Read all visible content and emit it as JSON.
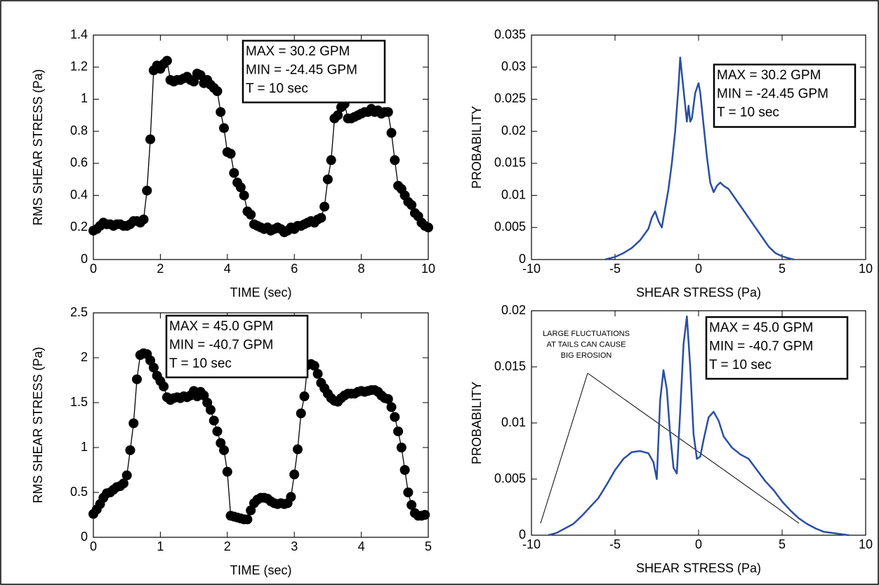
{
  "chart_data": [
    {
      "type": "line",
      "markers": true,
      "color": "#000000",
      "x_label": "TIME (sec)",
      "y_label": "RMS SHEAR STRESS (Pa)",
      "annotation": [
        "MAX = 30.2 GPM",
        "MIN = -24.45 GPM",
        "T = 10 sec"
      ],
      "x": [
        0,
        0.1,
        0.2,
        0.3,
        0.4,
        0.5,
        0.6,
        0.7,
        0.8,
        0.9,
        1,
        1.1,
        1.2,
        1.3,
        1.4,
        1.5,
        1.6,
        1.7,
        1.8,
        1.9,
        2,
        2.1,
        2.2,
        2.3,
        2.4,
        2.5,
        2.6,
        2.7,
        2.8,
        2.9,
        3,
        3.1,
        3.2,
        3.3,
        3.4,
        3.5,
        3.6,
        3.7,
        3.8,
        3.9,
        4,
        4.1,
        4.2,
        4.3,
        4.4,
        4.5,
        4.6,
        4.7,
        4.8,
        4.9,
        5,
        5.1,
        5.2,
        5.3,
        5.4,
        5.5,
        5.6,
        5.7,
        5.8,
        5.9,
        6,
        6.1,
        6.2,
        6.3,
        6.4,
        6.5,
        6.6,
        6.7,
        6.8,
        6.9,
        7,
        7.1,
        7.2,
        7.3,
        7.4,
        7.5,
        7.6,
        7.7,
        7.8,
        7.9,
        8,
        8.1,
        8.2,
        8.3,
        8.4,
        8.5,
        8.6,
        8.7,
        8.8,
        8.9,
        9,
        9.1,
        9.2,
        9.3,
        9.4,
        9.5,
        9.6,
        9.7,
        9.8,
        9.9,
        10
      ],
      "values": [
        0.18,
        0.19,
        0.21,
        0.23,
        0.22,
        0.22,
        0.21,
        0.22,
        0.22,
        0.21,
        0.21,
        0.22,
        0.24,
        0.24,
        0.23,
        0.25,
        0.43,
        0.75,
        1.18,
        1.21,
        1.19,
        1.22,
        1.24,
        1.12,
        1.11,
        1.12,
        1.12,
        1.13,
        1.14,
        1.12,
        1.11,
        1.16,
        1.15,
        1.1,
        1.12,
        1.09,
        1.07,
        1.05,
        0.92,
        0.82,
        0.67,
        0.66,
        0.54,
        0.48,
        0.45,
        0.4,
        0.3,
        0.28,
        0.22,
        0.21,
        0.2,
        0.19,
        0.2,
        0.18,
        0.19,
        0.2,
        0.19,
        0.17,
        0.18,
        0.2,
        0.19,
        0.21,
        0.21,
        0.22,
        0.23,
        0.24,
        0.23,
        0.25,
        0.26,
        0.33,
        0.5,
        0.62,
        0.88,
        0.9,
        0.95,
        0.97,
        0.88,
        0.88,
        0.89,
        0.9,
        0.91,
        0.92,
        0.92,
        0.94,
        0.92,
        0.93,
        0.91,
        0.92,
        0.92,
        0.79,
        0.62,
        0.46,
        0.44,
        0.4,
        0.36,
        0.34,
        0.29,
        0.27,
        0.23,
        0.21,
        0.2
      ],
      "xlim": [
        0,
        10
      ],
      "xticks": [
        0,
        2,
        4,
        6,
        8,
        10
      ],
      "ylim": [
        0,
        1.4
      ],
      "yticks": [
        0,
        0.2,
        0.4,
        0.6,
        0.8,
        1,
        1.2,
        1.4
      ]
    },
    {
      "type": "line",
      "markers": false,
      "color": "#2b4ea2",
      "x_label": "SHEAR STRESS (Pa)",
      "y_label": "PROBABILITY",
      "annotation": [
        "MAX = 30.2 GPM",
        "MIN = -24.45 GPM",
        "T = 10 sec"
      ],
      "x": [
        -5.6,
        -5,
        -4.5,
        -4,
        -3.5,
        -3,
        -2.8,
        -2.6,
        -2.4,
        -2.2,
        -2,
        -1.8,
        -1.6,
        -1.4,
        -1.2,
        -1.1,
        -1,
        -0.8,
        -0.7,
        -0.6,
        -0.5,
        -0.4,
        -0.2,
        0,
        0.1,
        0.3,
        0.5,
        0.7,
        0.9,
        1.1,
        1.3,
        1.5,
        1.8,
        2.2,
        2.6,
        3,
        3.4,
        3.8,
        4.2,
        4.6,
        5,
        5.4,
        5.7
      ],
      "values": [
        0,
        0.0004,
        0.001,
        0.0018,
        0.003,
        0.0048,
        0.0065,
        0.0075,
        0.006,
        0.005,
        0.008,
        0.011,
        0.015,
        0.02,
        0.027,
        0.0315,
        0.029,
        0.024,
        0.0215,
        0.024,
        0.0215,
        0.022,
        0.026,
        0.0275,
        0.026,
        0.021,
        0.016,
        0.012,
        0.0105,
        0.0115,
        0.012,
        0.0115,
        0.011,
        0.0095,
        0.008,
        0.0065,
        0.005,
        0.0035,
        0.002,
        0.001,
        0.0005,
        0.0002,
        0
      ],
      "xlim": [
        -10,
        10
      ],
      "xticks": [
        -10,
        -5,
        0,
        5,
        10
      ],
      "ylim": [
        0,
        0.035
      ],
      "yticks": [
        0,
        0.005,
        0.01,
        0.015,
        0.02,
        0.025,
        0.03,
        0.035
      ]
    },
    {
      "type": "line",
      "markers": true,
      "color": "#000000",
      "x_label": "TIME (sec)",
      "y_label": "RMS SHEAR STRESS (Pa)",
      "annotation": [
        "MAX = 45.0 GPM",
        "MIN = -40.7 GPM",
        "T = 10 sec"
      ],
      "x": [
        0,
        0.05,
        0.1,
        0.15,
        0.2,
        0.25,
        0.3,
        0.35,
        0.4,
        0.45,
        0.5,
        0.55,
        0.6,
        0.65,
        0.7,
        0.75,
        0.8,
        0.85,
        0.9,
        0.95,
        1,
        1.05,
        1.1,
        1.15,
        1.2,
        1.25,
        1.3,
        1.35,
        1.4,
        1.45,
        1.5,
        1.55,
        1.6,
        1.65,
        1.7,
        1.75,
        1.8,
        1.85,
        1.9,
        1.95,
        2,
        2.05,
        2.1,
        2.15,
        2.2,
        2.25,
        2.3,
        2.35,
        2.4,
        2.45,
        2.5,
        2.55,
        2.6,
        2.65,
        2.7,
        2.75,
        2.8,
        2.85,
        2.9,
        2.95,
        3,
        3.05,
        3.1,
        3.15,
        3.2,
        3.25,
        3.3,
        3.35,
        3.4,
        3.45,
        3.5,
        3.55,
        3.6,
        3.65,
        3.7,
        3.75,
        3.8,
        3.85,
        3.9,
        3.95,
        4,
        4.05,
        4.1,
        4.15,
        4.2,
        4.25,
        4.3,
        4.35,
        4.4,
        4.45,
        4.5,
        4.55,
        4.6,
        4.65,
        4.7,
        4.75,
        4.8,
        4.85,
        4.9,
        4.95
      ],
      "values": [
        0.26,
        0.31,
        0.37,
        0.44,
        0.49,
        0.5,
        0.53,
        0.56,
        0.57,
        0.6,
        0.69,
        0.97,
        1.27,
        1.76,
        2.03,
        2.05,
        2.04,
        1.97,
        1.89,
        1.8,
        1.74,
        1.68,
        1.56,
        1.53,
        1.55,
        1.56,
        1.55,
        1.57,
        1.56,
        1.58,
        1.63,
        1.57,
        1.62,
        1.58,
        1.5,
        1.42,
        1.3,
        1.18,
        1.05,
        0.97,
        0.73,
        0.24,
        0.23,
        0.22,
        0.21,
        0.2,
        0.2,
        0.3,
        0.38,
        0.42,
        0.44,
        0.44,
        0.43,
        0.4,
        0.38,
        0.37,
        0.38,
        0.37,
        0.38,
        0.45,
        0.7,
        0.98,
        1.38,
        1.57,
        1.92,
        1.93,
        1.91,
        1.82,
        1.72,
        1.66,
        1.6,
        1.55,
        1.52,
        1.51,
        1.55,
        1.58,
        1.6,
        1.6,
        1.6,
        1.62,
        1.63,
        1.62,
        1.63,
        1.64,
        1.64,
        1.62,
        1.58,
        1.55,
        1.54,
        1.45,
        1.34,
        1.18,
        1.0,
        0.75,
        0.5,
        0.36,
        0.27,
        0.24,
        0.24,
        0.25
      ],
      "xlim": [
        0,
        5
      ],
      "xticks": [
        0,
        1,
        2,
        3,
        4,
        5
      ],
      "ylim": [
        0,
        2.5
      ],
      "yticks": [
        0,
        0.5,
        1,
        1.5,
        2,
        2.5
      ]
    },
    {
      "type": "line",
      "markers": false,
      "color": "#2b4ea2",
      "x_label": "SHEAR STRESS (Pa)",
      "y_label": "PROBABILITY",
      "annotation": [
        "MAX = 45.0 GPM",
        "MIN = -40.7 GPM",
        "T = 10 sec"
      ],
      "note": [
        "LARGE FLUCTUATIONS",
        "AT TAILS CAN CAUSE",
        "BIG EROSION"
      ],
      "x": [
        -9,
        -8.5,
        -8,
        -7.5,
        -7,
        -6.5,
        -6,
        -5.5,
        -5,
        -4.5,
        -4,
        -3.5,
        -3,
        -2.7,
        -2.5,
        -2.3,
        -2.1,
        -1.9,
        -1.7,
        -1.5,
        -1.3,
        -1.1,
        -0.9,
        -0.7,
        -0.5,
        -0.3,
        -0.1,
        0.1,
        0.3,
        0.6,
        0.9,
        1.2,
        1.5,
        2,
        2.5,
        3,
        3.5,
        4,
        4.5,
        5,
        5.5,
        6,
        6.5,
        7,
        7.5,
        8,
        8.5,
        9
      ],
      "values": [
        0,
        0.0002,
        0.0006,
        0.001,
        0.0017,
        0.0025,
        0.0033,
        0.0045,
        0.0058,
        0.0068,
        0.0074,
        0.0075,
        0.0073,
        0.0065,
        0.005,
        0.012,
        0.0147,
        0.013,
        0.009,
        0.006,
        0.0055,
        0.011,
        0.017,
        0.0195,
        0.015,
        0.009,
        0.0068,
        0.007,
        0.0085,
        0.0105,
        0.011,
        0.0102,
        0.0088,
        0.0078,
        0.0072,
        0.0068,
        0.0058,
        0.0048,
        0.004,
        0.003,
        0.0022,
        0.0015,
        0.001,
        0.0006,
        0.0003,
        0.0002,
        0.0001,
        0
      ],
      "xlim": [
        -10,
        10
      ],
      "xticks": [
        -10,
        -5,
        0,
        5,
        10
      ],
      "ylim": [
        0,
        0.02
      ],
      "yticks": [
        0,
        0.005,
        0.01,
        0.015,
        0.02
      ]
    }
  ]
}
